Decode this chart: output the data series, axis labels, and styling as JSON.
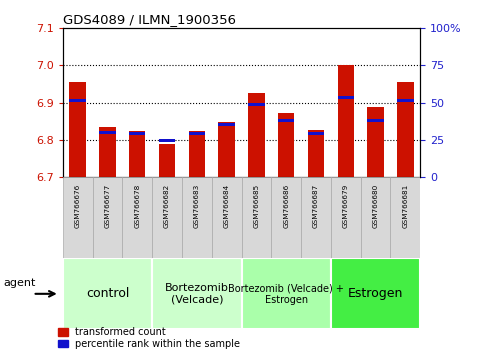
{
  "title": "GDS4089 / ILMN_1900356",
  "samples": [
    "GSM766676",
    "GSM766677",
    "GSM766678",
    "GSM766682",
    "GSM766683",
    "GSM766684",
    "GSM766685",
    "GSM766686",
    "GSM766687",
    "GSM766679",
    "GSM766680",
    "GSM766681"
  ],
  "red_values": [
    6.955,
    6.835,
    6.825,
    6.79,
    6.825,
    6.848,
    6.927,
    6.873,
    6.827,
    7.002,
    6.888,
    6.955
  ],
  "blue_values": [
    6.902,
    6.815,
    6.813,
    6.795,
    6.813,
    6.838,
    6.892,
    6.847,
    6.813,
    6.91,
    6.848,
    6.902
  ],
  "blue_bar_height": 0.008,
  "ymin": 6.7,
  "ymax": 7.1,
  "yticks_left": [
    6.7,
    6.8,
    6.9,
    7.0,
    7.1
  ],
  "yticks_right_vals": [
    0,
    25,
    50,
    75,
    100
  ],
  "yticks_right_labels": [
    "0",
    "25",
    "50",
    "75",
    "100%"
  ],
  "grid_lines": [
    6.8,
    6.9,
    7.0
  ],
  "group_data": [
    {
      "label": "control",
      "start": 0,
      "end": 3,
      "color": "#ccffcc",
      "fontsize": 9
    },
    {
      "label": "Bortezomib\n(Velcade)",
      "start": 3,
      "end": 6,
      "color": "#ccffcc",
      "fontsize": 8
    },
    {
      "label": "Bortezomib (Velcade) +\nEstrogen",
      "start": 6,
      "end": 9,
      "color": "#aaffaa",
      "fontsize": 7
    },
    {
      "label": "Estrogen",
      "start": 9,
      "end": 12,
      "color": "#44ee44",
      "fontsize": 9
    }
  ],
  "bar_color": "#cc1100",
  "dot_color": "#1111cc",
  "agent_label": "agent",
  "legend_red": "transformed count",
  "legend_blue": "percentile rank within the sample",
  "tick_color_left": "#cc1100",
  "tick_color_right": "#2222cc",
  "sample_box_color": "#d8d8d8",
  "sample_box_edge": "#aaaaaa"
}
